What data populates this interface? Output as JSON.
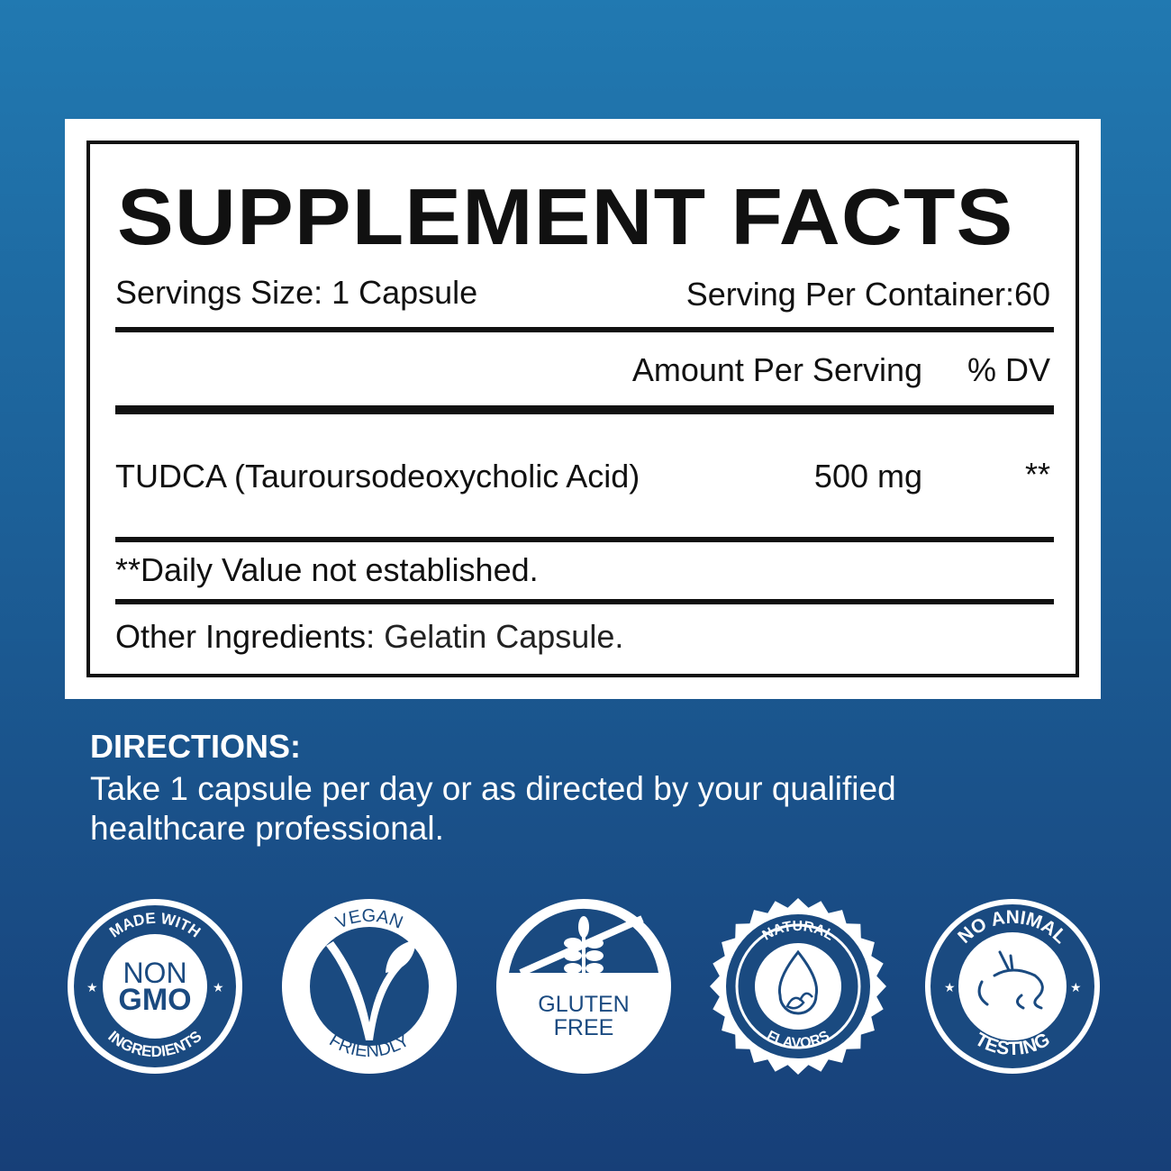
{
  "facts": {
    "title": "SUPPLEMENT FACTS",
    "serving_size": "Servings Size: 1 Capsule",
    "servings_per_container": "Serving Per Container:60",
    "amount_header": "Amount Per Serving",
    "dv_header": "% DV",
    "ingredient": {
      "name": "TUDCA (Tauroursodeoxycholic Acid)",
      "amount": "500 mg",
      "dv": "**"
    },
    "footnote": "**Daily Value not established.",
    "other_label": "Other Ingredients:",
    "other_value": "Gelatin Capsule."
  },
  "directions": {
    "heading": "DIRECTIONS:",
    "text": "Take 1 capsule per day or as directed by your qualified healthcare professional."
  },
  "badges": [
    {
      "top": "MADE WITH",
      "center1": "NON",
      "center2": "GMO",
      "bottom": "INGREDIENTS",
      "icon": "star-icon"
    },
    {
      "top": "VEGAN",
      "bottom": "FRIENDLY",
      "icon": "v-leaf-icon"
    },
    {
      "center1": "GLUTEN",
      "center2": "FREE",
      "icon": "wheat-crossed-icon"
    },
    {
      "top": "NATURAL",
      "bottom": "FLAVORS",
      "icon": "drop-leaf-icon"
    },
    {
      "top": "NO ANIMAL",
      "bottom": "TESTING",
      "icon": "rabbit-icon"
    }
  ],
  "colors": {
    "bg_top": "#2179b1",
    "bg_bottom": "#173f78",
    "badge": "#1a4a80"
  }
}
